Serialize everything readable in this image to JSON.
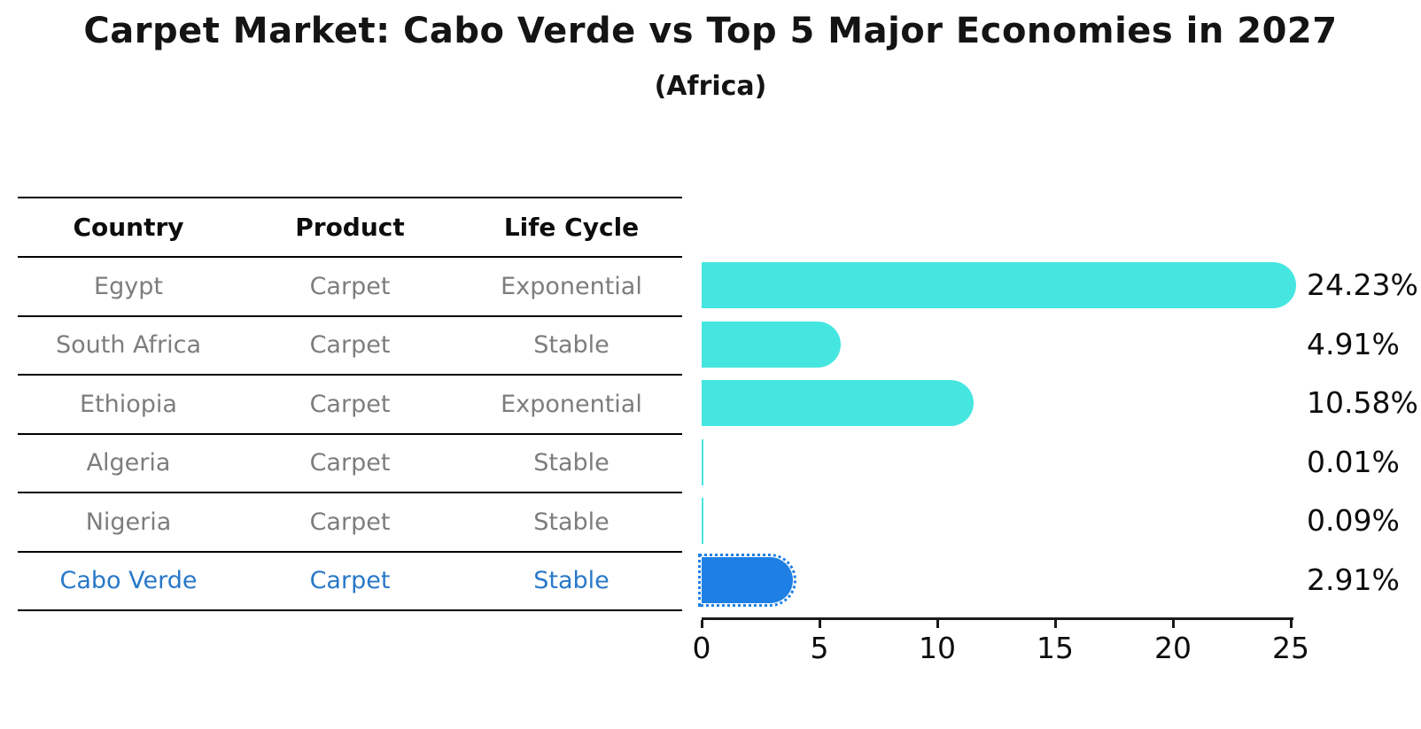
{
  "title": "Carpet Market: Cabo Verde vs Top 5 Major Economies in 2027",
  "subtitle": "(Africa)",
  "table": {
    "headers": [
      "Country",
      "Product",
      "Life Cycle"
    ],
    "rows": [
      {
        "country": "Egypt",
        "product": "Carpet",
        "life_cycle": "Exponential",
        "highlighted": false
      },
      {
        "country": "South Africa",
        "product": "Carpet",
        "life_cycle": "Stable",
        "highlighted": false
      },
      {
        "country": "Ethiopia",
        "product": "Carpet",
        "life_cycle": "Exponential",
        "highlighted": false
      },
      {
        "country": "Algeria",
        "product": "Carpet",
        "life_cycle": "Stable",
        "highlighted": false
      },
      {
        "country": "Nigeria",
        "product": "Carpet",
        "life_cycle": "Stable",
        "highlighted": false
      },
      {
        "country": "Cabo Verde",
        "product": "Carpet",
        "life_cycle": "Stable",
        "highlighted": true
      }
    ]
  },
  "chart_data": {
    "type": "bar",
    "orientation": "horizontal",
    "title": "Carpet Market: Cabo Verde vs Top 5 Major Economies in 2027",
    "subtitle": "(Africa)",
    "categories": [
      "Egypt",
      "South Africa",
      "Ethiopia",
      "Algeria",
      "Nigeria",
      "Cabo Verde"
    ],
    "values": [
      24.23,
      4.91,
      10.58,
      0.01,
      0.09,
      2.91
    ],
    "value_labels": [
      "24.23%",
      "4.91%",
      "10.58%",
      "0.01%",
      "0.09%",
      "2.91%"
    ],
    "xlim": [
      0,
      25
    ],
    "xticks": [
      0,
      5,
      10,
      15,
      20,
      25
    ],
    "grid": false,
    "legend": false,
    "highlight_index": 5,
    "highlight_style": "dotted-outline",
    "colors": {
      "bar": "#46E6E0",
      "highlight_bar": "#1E80E4",
      "highlight_text": "#2878C8",
      "table_text": "#7d7d7d",
      "axis": "#1a1a1a"
    }
  }
}
